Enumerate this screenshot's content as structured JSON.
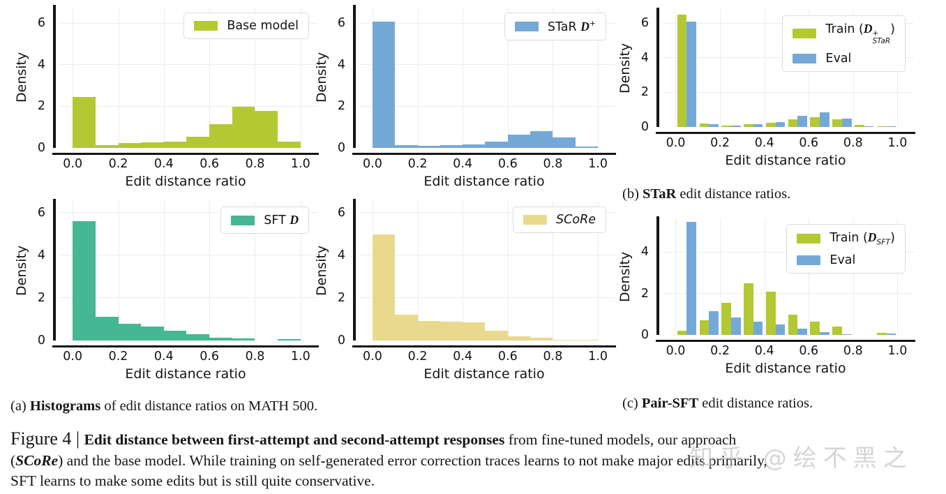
{
  "colors": {
    "olive": "#b3c832",
    "blue": "#74a9d7",
    "teal": "#45b793",
    "khaki": "#e9d98d",
    "axis": "#141414",
    "grid": "#ececec",
    "legend_border": "#dcdcdc",
    "watermark": "#bcbcbc"
  },
  "chart_data": [
    {
      "id": "base-model",
      "type": "bar",
      "title": "",
      "xlabel": "Edit distance ratio",
      "ylabel": "Density",
      "x_ticks": [
        "0.0",
        "0.2",
        "0.4",
        "0.6",
        "0.8",
        "1.0"
      ],
      "y_ticks": [
        0,
        2,
        4,
        6
      ],
      "ylim": [
        0,
        6.8
      ],
      "xlim": [
        0,
        1
      ],
      "bin_edges": [
        0,
        0.1,
        0.2,
        0.3,
        0.4,
        0.5,
        0.6,
        0.7,
        0.8,
        0.9,
        1.0
      ],
      "grid": true,
      "legend_position": "upper-right",
      "series": [
        {
          "name": "Base model",
          "color": "olive",
          "values": [
            2.45,
            0.15,
            0.25,
            0.28,
            0.3,
            0.55,
            1.15,
            2.0,
            1.8,
            0.3
          ],
          "label_segments": [
            {
              "t": "Base model",
              "k": "plain"
            }
          ]
        }
      ]
    },
    {
      "id": "star-dplus",
      "type": "bar",
      "title": "",
      "xlabel": "Edit distance ratio",
      "ylabel": "Density",
      "x_ticks": [
        "0.0",
        "0.2",
        "0.4",
        "0.6",
        "0.8",
        "1.0"
      ],
      "y_ticks": [
        0,
        2,
        4,
        6
      ],
      "ylim": [
        0,
        6.8
      ],
      "xlim": [
        0,
        1
      ],
      "bin_edges": [
        0,
        0.1,
        0.2,
        0.3,
        0.4,
        0.5,
        0.6,
        0.7,
        0.8,
        0.9,
        1.0
      ],
      "grid": true,
      "legend_position": "upper-right",
      "series": [
        {
          "name": "STaR D+",
          "color": "blue",
          "values": [
            6.1,
            0.15,
            0.1,
            0.12,
            0.18,
            0.3,
            0.65,
            0.8,
            0.5,
            0.08
          ],
          "label_segments": [
            {
              "t": "STaR ",
              "k": "plain"
            },
            {
              "t": "D",
              "k": "script"
            },
            {
              "t": "+",
              "k": "sup"
            }
          ]
        }
      ]
    },
    {
      "id": "star-train-vs-eval",
      "type": "bar",
      "title": "",
      "xlabel": "Edit distance ratio",
      "ylabel": "Density",
      "x_ticks": [
        "0.0",
        "0.2",
        "0.4",
        "0.6",
        "0.8",
        "1.0"
      ],
      "y_ticks": [
        0,
        2,
        4,
        6
      ],
      "ylim": [
        0,
        6.8
      ],
      "xlim": [
        0,
        1
      ],
      "bin_edges": [
        0,
        0.1,
        0.2,
        0.3,
        0.4,
        0.5,
        0.6,
        0.7,
        0.8,
        0.9,
        1.0
      ],
      "grid": true,
      "legend_position": "upper-right",
      "series": [
        {
          "name": "Train STaR",
          "color": "olive",
          "values": [
            6.5,
            0.2,
            0.1,
            0.15,
            0.25,
            0.45,
            0.55,
            0.45,
            0.12,
            0.03
          ],
          "label_segments": [
            {
              "t": "Train (",
              "k": "plain"
            },
            {
              "t": "D",
              "k": "script"
            },
            {
              "k": "stack",
              "sup": "+",
              "sub": "STaR"
            },
            {
              "t": ")",
              "k": "plain"
            }
          ]
        },
        {
          "name": "Eval",
          "color": "blue",
          "values": [
            6.1,
            0.15,
            0.1,
            0.15,
            0.3,
            0.65,
            0.85,
            0.5,
            0.05,
            0.05
          ],
          "label_segments": [
            {
              "t": "Eval",
              "k": "plain"
            }
          ]
        }
      ]
    },
    {
      "id": "sft-d",
      "type": "bar",
      "title": "",
      "xlabel": "Edit distance ratio",
      "ylabel": "Density",
      "x_ticks": [
        "0.0",
        "0.2",
        "0.4",
        "0.6",
        "0.8",
        "1.0"
      ],
      "y_ticks": [
        0,
        2,
        4,
        6
      ],
      "ylim": [
        0,
        6.56
      ],
      "xlim": [
        0,
        1
      ],
      "bin_edges": [
        0,
        0.1,
        0.2,
        0.3,
        0.4,
        0.5,
        0.6,
        0.7,
        0.8,
        0.9,
        1.0
      ],
      "grid": true,
      "legend_position": "upper-right",
      "series": [
        {
          "name": "SFT D",
          "color": "teal",
          "values": [
            5.6,
            1.1,
            0.8,
            0.65,
            0.45,
            0.3,
            0.12,
            0.1,
            0.0,
            0.05
          ],
          "label_segments": [
            {
              "t": "SFT ",
              "k": "plain"
            },
            {
              "t": "D",
              "k": "script"
            }
          ]
        }
      ]
    },
    {
      "id": "score",
      "type": "bar",
      "title": "",
      "xlabel": "Edit distance ratio",
      "ylabel": "Density",
      "x_ticks": [
        "0.0",
        "0.2",
        "0.4",
        "0.6",
        "0.8",
        "1.0"
      ],
      "y_ticks": [
        0,
        2,
        4,
        6
      ],
      "ylim": [
        0,
        6.56
      ],
      "xlim": [
        0,
        1
      ],
      "bin_edges": [
        0,
        0.1,
        0.2,
        0.3,
        0.4,
        0.5,
        0.6,
        0.7,
        0.8,
        0.9,
        1.0
      ],
      "grid": true,
      "legend_position": "upper-right",
      "series": [
        {
          "name": "SCoRe",
          "color": "khaki",
          "values": [
            5.0,
            1.2,
            0.92,
            0.88,
            0.85,
            0.45,
            0.2,
            0.12,
            0.04,
            0.02
          ],
          "label_segments": [
            {
              "t": "SCoRe",
              "k": "italic"
            }
          ]
        }
      ]
    },
    {
      "id": "pair-sft-train-vs-eval",
      "type": "bar",
      "title": "",
      "xlabel": "Edit distance ratio",
      "ylabel": "Density",
      "x_ticks": [
        "0.0",
        "0.2",
        "0.4",
        "0.6",
        "0.8",
        "1.0"
      ],
      "y_ticks": [
        0,
        2,
        4
      ],
      "ylim": [
        0,
        5.66
      ],
      "xlim": [
        0,
        1
      ],
      "bin_edges": [
        0,
        0.1,
        0.2,
        0.3,
        0.4,
        0.5,
        0.6,
        0.7,
        0.8,
        0.9,
        1.0
      ],
      "grid": true,
      "legend_position": "upper-right",
      "series": [
        {
          "name": "Train SFT",
          "color": "olive",
          "values": [
            0.2,
            0.7,
            1.55,
            2.5,
            2.1,
            1.0,
            0.65,
            0.4,
            0.0,
            0.1
          ],
          "label_segments": [
            {
              "t": "Train (",
              "k": "plain"
            },
            {
              "t": "D",
              "k": "script"
            },
            {
              "t": "SFT",
              "k": "sub"
            },
            {
              "t": ")",
              "k": "plain"
            }
          ]
        },
        {
          "name": "Eval",
          "color": "blue",
          "values": [
            5.5,
            1.15,
            0.85,
            0.65,
            0.5,
            0.3,
            0.15,
            0.02,
            0.0,
            0.07
          ],
          "label_segments": [
            {
              "t": "Eval",
              "k": "plain"
            }
          ]
        }
      ]
    }
  ],
  "captions": {
    "a": [
      {
        "t": "(a) ",
        "k": "plain"
      },
      {
        "t": "Histograms",
        "k": "bold"
      },
      {
        "t": " of edit distance ratios on MATH 500.",
        "k": "plain"
      }
    ],
    "b": [
      {
        "t": "(b) ",
        "k": "plain"
      },
      {
        "t": "STaR",
        "k": "bold"
      },
      {
        "t": " edit distance ratios.",
        "k": "plain"
      }
    ],
    "c": [
      {
        "t": "(c) ",
        "k": "plain"
      },
      {
        "t": "Pair-SFT",
        "k": "bold"
      },
      {
        "t": " edit distance ratios.",
        "k": "plain"
      }
    ]
  },
  "figure_caption": {
    "lines": [
      [
        {
          "t": "Figure 4 | ",
          "k": "figlabel"
        },
        {
          "t": "Edit distance between first-attempt and second-attempt responses",
          "k": "bold"
        },
        {
          "t": " from fine-tuned models, our approach",
          "k": "plain"
        }
      ],
      [
        {
          "t": "(",
          "k": "plain"
        },
        {
          "t": "SCoRe",
          "k": "boldit"
        },
        {
          "t": ") and the base model. While training on self-generated error correction traces learns to not make major edits primarily,",
          "k": "plain"
        }
      ],
      [
        {
          "t": "SFT learns to make some edits but is still quite conservative.",
          "k": "plain"
        }
      ]
    ]
  },
  "watermark": "知乎 @绘不黑之"
}
